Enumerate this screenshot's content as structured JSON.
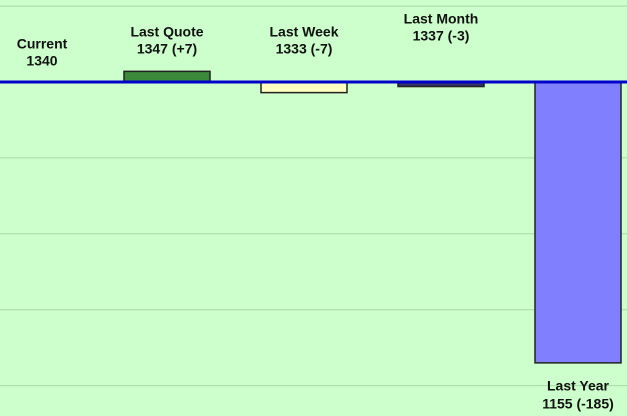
{
  "chart_data": {
    "type": "bar",
    "categories": [
      "Current",
      "Last Quote",
      "Last Week",
      "Last Month",
      "Last Year"
    ],
    "values": [
      0,
      7,
      -7,
      -3,
      -185
    ],
    "value_labels": [
      "1340",
      "1347 (+7)",
      "1333 (-7)",
      "1337 (-3)",
      "1155 (-185)"
    ],
    "colors": [
      "#8080ff",
      "#3a8a3a",
      "#ffffc0",
      "#333366",
      "#8080ff"
    ],
    "ylim": [
      -220,
      54
    ],
    "yticks": [
      -200,
      -150,
      -100,
      -50,
      0,
      50
    ],
    "grid": true,
    "baseline_color": "#0000cc"
  }
}
